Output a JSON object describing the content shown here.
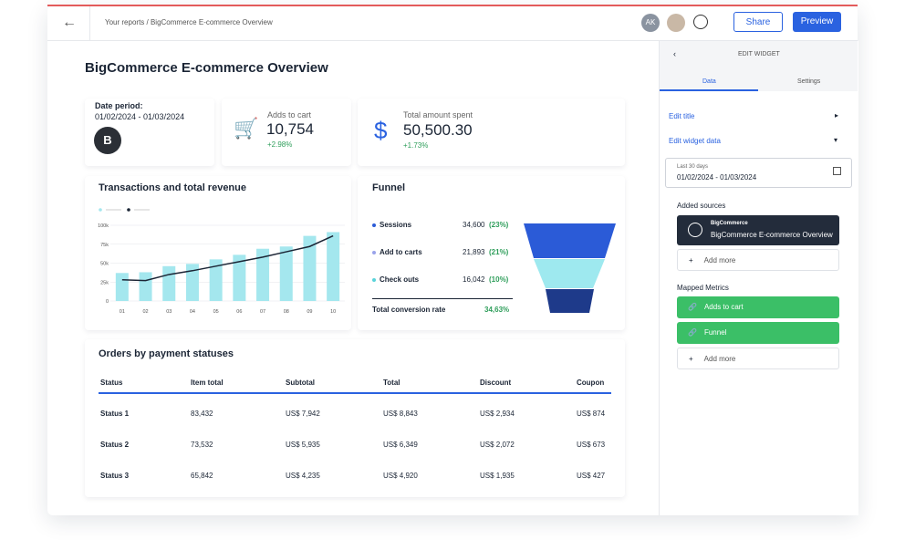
{
  "topbar": {
    "breadcrumb": "Your reports / BigCommerce E-commerce Overview",
    "avatar_initials": "AK",
    "share": "Share",
    "preview": "Preview"
  },
  "dashboard": {
    "title": "BigCommerce E-commerce Overview",
    "date_card": {
      "label": "Date period:",
      "range": "01/02/2024 - 01/03/2024"
    },
    "kpis": [
      {
        "label": "Adds to cart",
        "value": "10,754",
        "change": "+2.98%"
      },
      {
        "label": "Total amount spent",
        "value": "50,500.30",
        "change": "+1.73%"
      }
    ],
    "transactions_chart": {
      "type": "bar",
      "title": "Transactions and total revenue",
      "categories": [
        "01",
        "02",
        "03",
        "04",
        "05",
        "06",
        "07",
        "08",
        "09",
        "10"
      ],
      "series": [
        {
          "type": "bar",
          "color": "#a4e7ee",
          "values": [
            37000,
            38000,
            46000,
            49000,
            55000,
            61000,
            69000,
            72000,
            86000,
            91000
          ]
        },
        {
          "type": "line",
          "color": "#1b2535",
          "values": [
            28000,
            27000,
            35000,
            40000,
            46000,
            52000,
            58000,
            65000,
            72000,
            86000
          ]
        }
      ],
      "ylim": [
        0,
        100000
      ],
      "yticks": [
        0,
        {
          "value": 25000,
          "label": "25k"
        },
        {
          "value": 50000,
          "label": "50k"
        },
        {
          "value": 75000,
          "label": "75k"
        },
        {
          "value": 100000,
          "label": "100k"
        }
      ],
      "grid": true
    },
    "funnel": {
      "title": "Funnel",
      "rows": [
        {
          "label": "Sessions",
          "value": "34,600",
          "pct": "(23%)"
        },
        {
          "label": "Add to carts",
          "value": "21,893",
          "pct": "(21%)"
        },
        {
          "label": "Check outs",
          "value": "16,042",
          "pct": "(10%)"
        }
      ],
      "total_label": "Total conversion rate",
      "total_value": "34,63%"
    },
    "orders_table": {
      "title": "Orders by payment statuses",
      "columns": [
        "Status",
        "Item total",
        "Subtotal",
        "Total",
        "Discount",
        "Coupon"
      ],
      "rows": [
        [
          "Status 1",
          "83,432",
          "US$ 7,942",
          "US$ 8,843",
          "US$ 2,934",
          "US$ 874"
        ],
        [
          "Status 2",
          "73,532",
          "US$ 5,935",
          "US$ 6,349",
          "US$ 2,072",
          "US$ 673"
        ],
        [
          "Status 3",
          "65,842",
          "US$ 4,235",
          "US$ 4,920",
          "US$ 1,935",
          "US$ 427"
        ]
      ]
    }
  },
  "panel": {
    "header": "EDIT WIDGET",
    "tabs": [
      "Data",
      "Settings"
    ],
    "edit_title": "Edit title",
    "edit_widget_data": "Edit widget data",
    "date_hint": "Last 30 days",
    "date_value": "01/02/2024 - 01/03/2024",
    "added_sources_label": "Added sources",
    "source": {
      "name": "BigCommerce",
      "detail": "BigCommerce E-commerce Overview"
    },
    "add_more": "Add more",
    "mapped_metrics_label": "Mapped Metrics",
    "metrics": [
      "Adds to cart",
      "Funnel"
    ],
    "add_more_2": "Add more"
  }
}
